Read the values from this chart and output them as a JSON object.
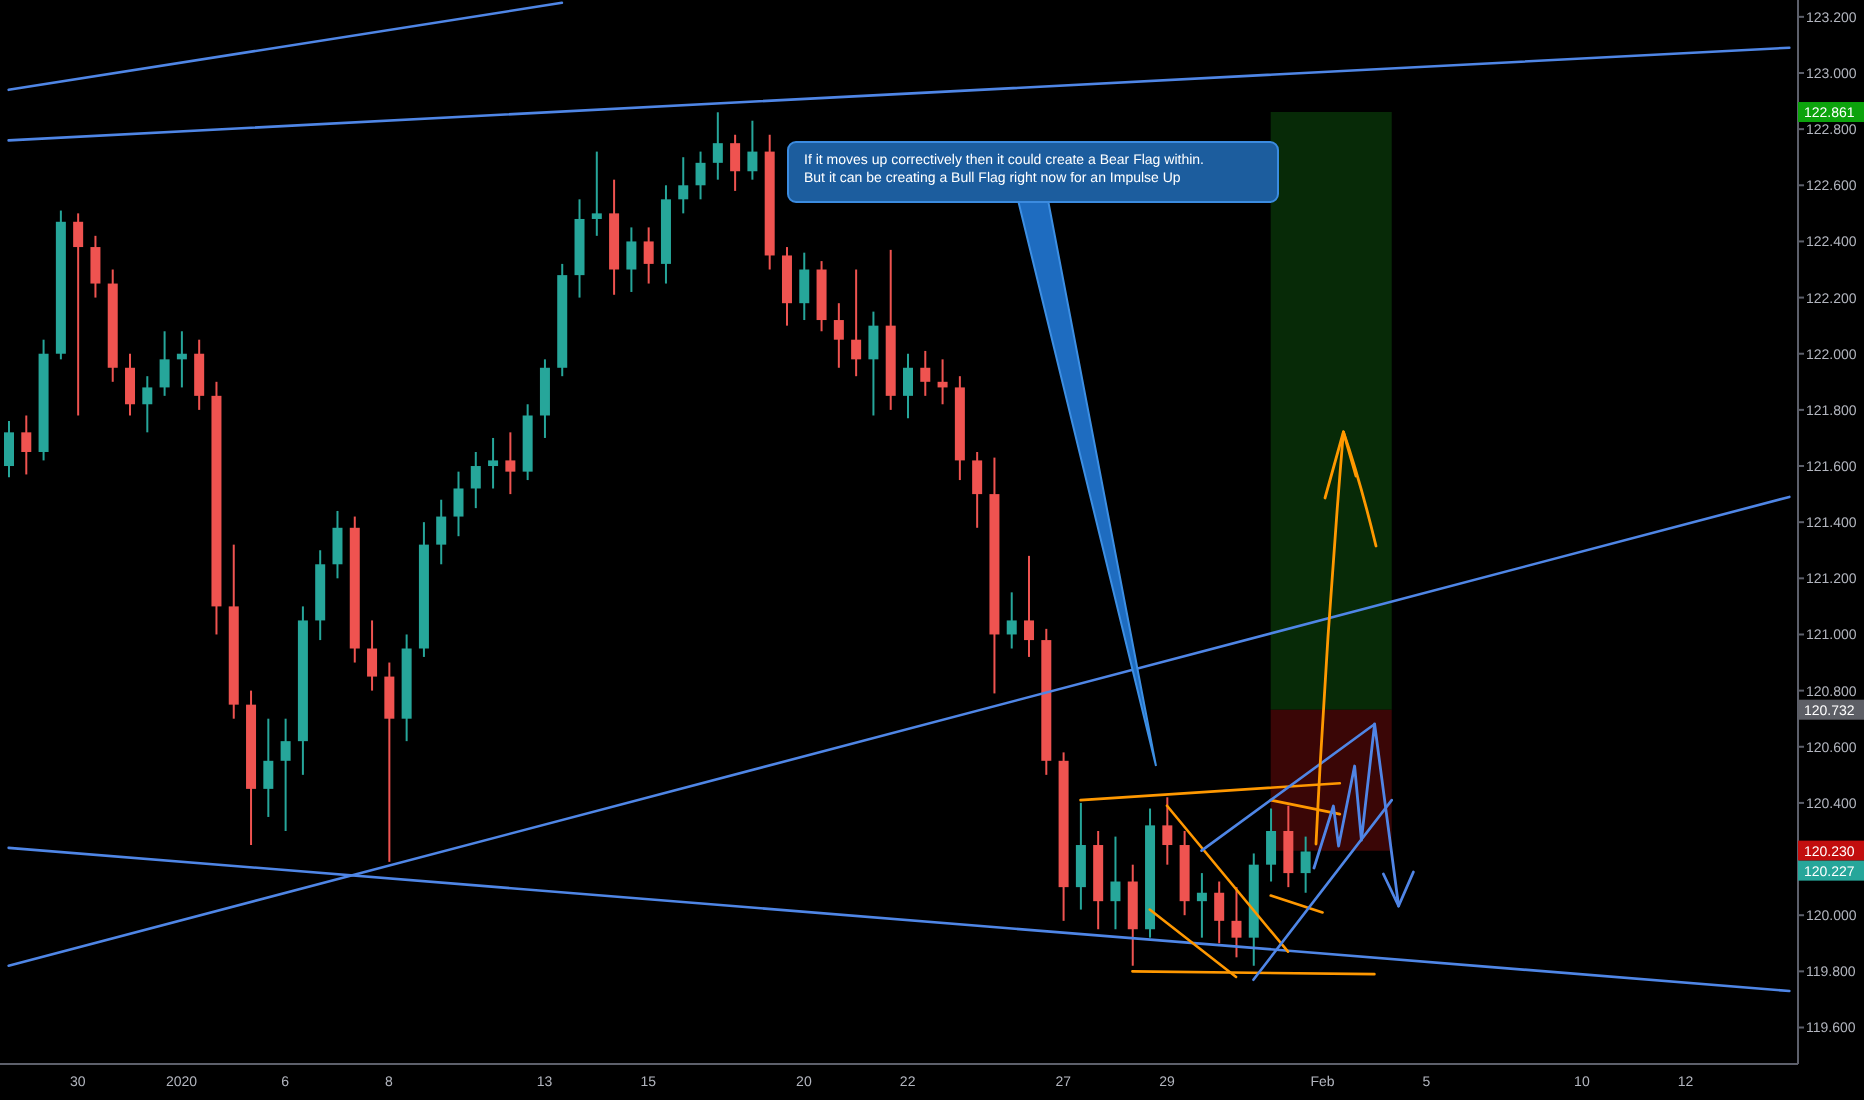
{
  "chart_data": {
    "type": "candlestick",
    "categories": [
      null,
      null,
      null,
      null,
      "30",
      null,
      null,
      null,
      null,
      null,
      "2020",
      null,
      null,
      null,
      null,
      null,
      "6",
      null,
      null,
      null,
      null,
      null,
      "8",
      null,
      null,
      null,
      null,
      null,
      null,
      null,
      null,
      "13",
      null,
      null,
      null,
      null,
      null,
      "15",
      null,
      null,
      null,
      null,
      null,
      null,
      null,
      null,
      "20",
      null,
      null,
      null,
      null,
      null,
      "22",
      null,
      null,
      null,
      null,
      null,
      null,
      null,
      null,
      "27",
      null,
      null,
      null,
      null,
      null,
      "29",
      null,
      null,
      null,
      null,
      null,
      null,
      null,
      null,
      "Feb",
      null,
      null,
      null,
      null,
      null,
      "5",
      null,
      null,
      null,
      null,
      null,
      null,
      null,
      null,
      "10",
      null,
      null,
      null,
      null,
      null,
      "12",
      null,
      null,
      null,
      null,
      null,
      null
    ],
    "ohlc": [
      [
        121.6,
        121.76,
        121.56,
        121.72
      ],
      [
        121.72,
        121.78,
        121.57,
        121.65
      ],
      [
        121.65,
        122.05,
        121.62,
        122.0
      ],
      [
        122.0,
        122.51,
        121.98,
        122.47
      ],
      [
        122.47,
        122.5,
        121.78,
        122.38
      ],
      [
        122.38,
        122.42,
        122.2,
        122.25
      ],
      [
        122.25,
        122.3,
        121.9,
        121.95
      ],
      [
        121.95,
        122.0,
        121.78,
        121.82
      ],
      [
        121.82,
        121.92,
        121.72,
        121.88
      ],
      [
        121.88,
        122.08,
        121.85,
        121.98
      ],
      [
        121.98,
        122.08,
        121.88,
        122.0
      ],
      [
        122.0,
        122.05,
        121.8,
        121.85
      ],
      [
        121.85,
        121.9,
        121.0,
        121.1
      ],
      [
        121.1,
        121.32,
        120.7,
        120.75
      ],
      [
        120.75,
        120.8,
        120.25,
        120.45
      ],
      [
        120.45,
        120.7,
        120.35,
        120.55
      ],
      [
        120.55,
        120.7,
        120.3,
        120.62
      ],
      [
        120.62,
        121.1,
        120.5,
        121.05
      ],
      [
        121.05,
        121.3,
        120.98,
        121.25
      ],
      [
        121.25,
        121.44,
        121.2,
        121.38
      ],
      [
        121.38,
        121.42,
        120.9,
        120.95
      ],
      [
        120.95,
        121.05,
        120.8,
        120.85
      ],
      [
        120.85,
        120.9,
        120.19,
        120.7
      ],
      [
        120.7,
        121.0,
        120.62,
        120.95
      ],
      [
        120.95,
        121.4,
        120.92,
        121.32
      ],
      [
        121.32,
        121.48,
        121.25,
        121.42
      ],
      [
        121.42,
        121.58,
        121.35,
        121.52
      ],
      [
        121.52,
        121.65,
        121.45,
        121.6
      ],
      [
        121.6,
        121.7,
        121.52,
        121.62
      ],
      [
        121.62,
        121.72,
        121.5,
        121.58
      ],
      [
        121.58,
        121.82,
        121.55,
        121.78
      ],
      [
        121.78,
        121.98,
        121.7,
        121.95
      ],
      [
        121.95,
        122.32,
        121.92,
        122.28
      ],
      [
        122.28,
        122.55,
        122.2,
        122.48
      ],
      [
        122.48,
        122.72,
        122.42,
        122.5
      ],
      [
        122.5,
        122.62,
        122.21,
        122.3
      ],
      [
        122.3,
        122.45,
        122.22,
        122.4
      ],
      [
        122.4,
        122.45,
        122.25,
        122.32
      ],
      [
        122.32,
        122.6,
        122.25,
        122.55
      ],
      [
        122.55,
        122.7,
        122.5,
        122.6
      ],
      [
        122.6,
        122.72,
        122.55,
        122.68
      ],
      [
        122.68,
        122.86,
        122.62,
        122.75
      ],
      [
        122.75,
        122.78,
        122.58,
        122.65
      ],
      [
        122.65,
        122.83,
        122.62,
        122.72
      ],
      [
        122.72,
        122.78,
        122.3,
        122.35
      ],
      [
        122.35,
        122.38,
        122.1,
        122.18
      ],
      [
        122.18,
        122.36,
        122.12,
        122.3
      ],
      [
        122.3,
        122.33,
        122.08,
        122.12
      ],
      [
        122.12,
        122.18,
        121.95,
        122.05
      ],
      [
        122.05,
        122.3,
        121.92,
        121.98
      ],
      [
        121.98,
        122.15,
        121.78,
        122.1
      ],
      [
        122.1,
        122.37,
        121.8,
        121.85
      ],
      [
        121.85,
        122.0,
        121.77,
        121.95
      ],
      [
        121.95,
        122.01,
        121.85,
        121.9
      ],
      [
        121.9,
        121.98,
        121.82,
        121.88
      ],
      [
        121.88,
        121.92,
        121.55,
        121.62
      ],
      [
        121.62,
        121.65,
        121.38,
        121.5
      ],
      [
        121.5,
        121.63,
        120.79,
        121.0
      ],
      [
        121.0,
        121.15,
        120.95,
        121.05
      ],
      [
        121.05,
        121.28,
        120.92,
        120.98
      ],
      [
        120.98,
        121.02,
        120.5,
        120.55
      ],
      [
        120.55,
        120.58,
        119.98,
        120.1
      ],
      [
        120.1,
        120.4,
        120.02,
        120.25
      ],
      [
        120.25,
        120.3,
        119.95,
        120.05
      ],
      [
        120.05,
        120.28,
        119.95,
        120.12
      ],
      [
        120.12,
        120.18,
        119.82,
        119.95
      ],
      [
        119.95,
        120.38,
        119.92,
        120.32
      ],
      [
        120.32,
        120.42,
        120.18,
        120.25
      ],
      [
        120.25,
        120.3,
        120.0,
        120.05
      ],
      [
        120.05,
        120.15,
        119.92,
        120.08
      ],
      [
        120.08,
        120.12,
        119.9,
        119.98
      ],
      [
        119.98,
        120.1,
        119.85,
        119.92
      ],
      [
        119.92,
        120.22,
        119.82,
        120.18
      ],
      [
        120.18,
        120.38,
        120.12,
        120.3
      ],
      [
        120.3,
        120.39,
        120.1,
        120.15
      ],
      [
        120.15,
        120.28,
        120.08,
        120.227
      ],
      null,
      null,
      null,
      null,
      null,
      null,
      null,
      null,
      null,
      null,
      null,
      null,
      null,
      null,
      null,
      null,
      null,
      null,
      null,
      null,
      null,
      null,
      null,
      null,
      null,
      null,
      null,
      null
    ],
    "colors": [
      "#26a69a",
      "#ef5350",
      "#26a69a",
      "#26a69a",
      "#ef5350",
      "#ef5350",
      "#ef5350",
      "#ef5350",
      "#26a69a",
      "#26a69a",
      "#26a69a",
      "#ef5350",
      "#ef5350",
      "#ef5350",
      "#ef5350",
      "#26a69a",
      "#26a69a",
      "#26a69a",
      "#26a69a",
      "#26a69a",
      "#ef5350",
      "#ef5350",
      "#ef5350",
      "#26a69a",
      "#26a69a",
      "#26a69a",
      "#26a69a",
      "#26a69a",
      "#26a69a",
      "#ef5350",
      "#26a69a",
      "#26a69a",
      "#26a69a",
      "#26a69a",
      "#26a69a",
      "#ef5350",
      "#26a69a",
      "#ef5350",
      "#26a69a",
      "#26a69a",
      "#26a69a",
      "#26a69a",
      "#ef5350",
      "#26a69a",
      "#ef5350",
      "#ef5350",
      "#26a69a",
      "#ef5350",
      "#ef5350",
      "#ef5350",
      "#26a69a",
      "#ef5350",
      "#26a69a",
      "#ef5350",
      "#ef5350",
      "#ef5350",
      "#ef5350",
      "#ef5350",
      "#26a69a",
      "#ef5350",
      "#ef5350",
      "#ef5350",
      "#26a69a",
      "#ef5350",
      "#26a69a",
      "#ef5350",
      "#26a69a",
      "#ef5350",
      "#ef5350",
      "#26a69a",
      "#ef5350",
      "#ef5350",
      "#26a69a",
      "#26a69a",
      "#ef5350",
      "#26a69a",
      null,
      null,
      null,
      null,
      null,
      null,
      null,
      null,
      null,
      null,
      null,
      null,
      null,
      null,
      null,
      null,
      null,
      null,
      null,
      null,
      null,
      null,
      null,
      null,
      null,
      null,
      null,
      null
    ],
    "series": [
      {
        "type": "line",
        "color": "#4f86e6",
        "values": [
          122.94,
          null,
          null,
          null,
          null,
          null,
          null,
          null,
          null,
          null,
          null,
          null,
          null,
          null,
          null,
          null,
          null,
          null,
          null,
          null,
          null,
          null,
          null,
          null,
          null,
          null,
          null,
          null,
          null,
          null,
          null,
          null,
          123.25,
          null,
          null,
          null,
          null,
          null,
          null,
          null,
          null,
          null,
          null,
          null,
          null,
          null,
          null,
          null,
          null,
          null,
          null,
          null,
          null,
          null,
          null,
          null,
          null,
          null,
          null,
          null,
          null,
          null,
          null,
          null,
          null,
          null,
          null,
          null,
          null,
          null,
          null,
          null,
          null,
          null,
          null,
          null,
          null,
          null,
          null,
          null,
          null,
          null,
          null,
          null,
          null,
          null,
          null,
          null,
          null,
          null,
          null,
          null,
          null,
          null,
          null,
          null,
          null,
          null,
          null,
          null,
          null,
          null,
          null,
          null
        ]
      },
      {
        "type": "line",
        "color": "#4f86e6",
        "values": [
          122.76,
          null,
          null,
          null,
          null,
          null,
          null,
          null,
          null,
          null,
          null,
          null,
          null,
          null,
          null,
          null,
          null,
          null,
          null,
          null,
          null,
          null,
          null,
          null,
          null,
          null,
          null,
          null,
          null,
          null,
          null,
          null,
          null,
          null,
          null,
          null,
          null,
          null,
          null,
          null,
          null,
          null,
          null,
          null,
          null,
          null,
          null,
          null,
          null,
          null,
          null,
          null,
          null,
          null,
          null,
          null,
          null,
          null,
          null,
          null,
          null,
          null,
          null,
          null,
          null,
          null,
          null,
          null,
          null,
          null,
          null,
          null,
          null,
          null,
          null,
          null,
          null,
          null,
          null,
          null,
          null,
          null,
          null,
          null,
          null,
          null,
          null,
          null,
          null,
          null,
          null,
          null,
          null,
          null,
          null,
          null,
          null,
          null,
          null,
          null,
          null,
          null,
          null,
          123.09
        ]
      },
      {
        "type": "line",
        "color": "#4f86e6",
        "values": [
          119.82,
          null,
          null,
          null,
          null,
          null,
          null,
          null,
          null,
          null,
          null,
          null,
          null,
          null,
          null,
          null,
          null,
          null,
          null,
          null,
          null,
          null,
          null,
          null,
          null,
          null,
          null,
          null,
          null,
          null,
          null,
          null,
          null,
          null,
          null,
          null,
          null,
          null,
          null,
          null,
          null,
          null,
          null,
          null,
          null,
          null,
          null,
          null,
          null,
          null,
          null,
          null,
          null,
          null,
          null,
          null,
          null,
          null,
          null,
          null,
          null,
          null,
          null,
          null,
          null,
          null,
          null,
          null,
          null,
          null,
          null,
          null,
          null,
          null,
          null,
          null,
          null,
          null,
          null,
          null,
          null,
          null,
          null,
          null,
          null,
          null,
          null,
          null,
          null,
          null,
          null,
          null,
          null,
          null,
          null,
          null,
          null,
          null,
          null,
          null,
          null,
          null,
          null,
          121.49
        ]
      },
      {
        "type": "line",
        "color": "#4f86e6",
        "values": [
          120.24,
          null,
          null,
          null,
          null,
          null,
          null,
          null,
          null,
          null,
          null,
          null,
          null,
          null,
          null,
          null,
          null,
          null,
          null,
          null,
          null,
          null,
          null,
          null,
          null,
          null,
          null,
          null,
          null,
          null,
          null,
          null,
          null,
          null,
          null,
          null,
          null,
          null,
          null,
          null,
          null,
          null,
          null,
          null,
          null,
          null,
          null,
          null,
          null,
          null,
          null,
          null,
          null,
          null,
          null,
          null,
          null,
          null,
          null,
          null,
          null,
          null,
          null,
          null,
          null,
          null,
          null,
          null,
          null,
          null,
          null,
          null,
          null,
          null,
          null,
          null,
          null,
          null,
          null,
          null,
          null,
          null,
          null,
          null,
          null,
          null,
          null,
          null,
          null,
          null,
          null,
          null,
          null,
          null,
          null,
          null,
          null,
          null,
          null,
          null,
          null,
          null,
          null,
          119.73
        ]
      },
      {
        "type": "line",
        "color": "#ff9800",
        "values": [
          null,
          null,
          null,
          null,
          null,
          null,
          null,
          null,
          null,
          null,
          null,
          null,
          null,
          null,
          null,
          null,
          null,
          null,
          null,
          null,
          null,
          null,
          null,
          null,
          null,
          null,
          null,
          null,
          null,
          null,
          null,
          null,
          null,
          null,
          null,
          null,
          null,
          null,
          null,
          null,
          null,
          null,
          null,
          null,
          null,
          null,
          null,
          null,
          null,
          null,
          null,
          null,
          null,
          null,
          null,
          null,
          null,
          null,
          null,
          null,
          null,
          null,
          120.41,
          null,
          null,
          null,
          null,
          null,
          null,
          null,
          null,
          null,
          null,
          null,
          null,
          null,
          null,
          120.47,
          null,
          null,
          null,
          null,
          null,
          null,
          null,
          null,
          null,
          null,
          null,
          null,
          null,
          null,
          null,
          null,
          null,
          null,
          null,
          null,
          null,
          null,
          null,
          null,
          null,
          null
        ]
      },
      {
        "type": "line",
        "color": "#ff9800",
        "values": [
          null,
          null,
          null,
          null,
          null,
          null,
          null,
          null,
          null,
          null,
          null,
          null,
          null,
          null,
          null,
          null,
          null,
          null,
          null,
          null,
          null,
          null,
          null,
          null,
          null,
          null,
          null,
          null,
          null,
          null,
          null,
          null,
          null,
          null,
          null,
          null,
          null,
          null,
          null,
          null,
          null,
          null,
          null,
          null,
          null,
          null,
          null,
          null,
          null,
          null,
          null,
          null,
          null,
          null,
          null,
          null,
          null,
          null,
          null,
          null,
          null,
          null,
          null,
          null,
          null,
          null,
          null,
          120.39,
          null,
          null,
          null,
          null,
          null,
          null,
          119.87,
          null,
          null,
          null,
          null,
          null,
          null,
          null,
          null,
          null,
          null,
          null,
          null,
          null,
          null,
          null,
          null,
          null,
          null,
          null,
          null,
          null,
          null,
          null,
          null,
          null,
          null,
          null,
          null,
          null
        ]
      },
      {
        "type": "line",
        "color": "#ff9800",
        "values": [
          null,
          null,
          null,
          null,
          null,
          null,
          null,
          null,
          null,
          null,
          null,
          null,
          null,
          null,
          null,
          null,
          null,
          null,
          null,
          null,
          null,
          null,
          null,
          null,
          null,
          null,
          null,
          null,
          null,
          null,
          null,
          null,
          null,
          null,
          null,
          null,
          null,
          null,
          null,
          null,
          null,
          null,
          null,
          null,
          null,
          null,
          null,
          null,
          null,
          null,
          null,
          null,
          null,
          null,
          null,
          null,
          null,
          null,
          null,
          null,
          null,
          null,
          null,
          null,
          null,
          null,
          120.02,
          null,
          null,
          null,
          null,
          119.78,
          null,
          null,
          null,
          null,
          null,
          null,
          null,
          null,
          null,
          null,
          null,
          null,
          null,
          null,
          null,
          null,
          null,
          null,
          null,
          null,
          null,
          null,
          null,
          null,
          null,
          null,
          null,
          null,
          null,
          null,
          null,
          null
        ]
      },
      {
        "type": "line",
        "color": "#ff9800",
        "values": [
          null,
          null,
          null,
          null,
          null,
          null,
          null,
          null,
          null,
          null,
          null,
          null,
          null,
          null,
          null,
          null,
          null,
          null,
          null,
          null,
          null,
          null,
          null,
          null,
          null,
          null,
          null,
          null,
          null,
          null,
          null,
          null,
          null,
          null,
          null,
          null,
          null,
          null,
          null,
          null,
          null,
          null,
          null,
          null,
          null,
          null,
          null,
          null,
          null,
          null,
          null,
          null,
          null,
          null,
          null,
          null,
          null,
          null,
          null,
          null,
          null,
          null,
          null,
          null,
          null,
          119.8,
          null,
          null,
          null,
          null,
          null,
          null,
          null,
          null,
          null,
          null,
          null,
          null,
          null,
          119.79,
          null,
          null,
          null,
          null,
          null,
          null,
          null,
          null,
          null,
          null,
          null,
          null,
          null,
          null,
          null,
          null,
          null,
          null,
          null,
          null,
          null,
          null,
          null,
          null
        ]
      },
      {
        "type": "line",
        "color": "#ff9800",
        "values": [
          null,
          null,
          null,
          null,
          null,
          null,
          null,
          null,
          null,
          null,
          null,
          null,
          null,
          null,
          null,
          null,
          null,
          null,
          null,
          null,
          null,
          null,
          null,
          null,
          null,
          null,
          null,
          null,
          null,
          null,
          null,
          null,
          null,
          null,
          null,
          null,
          null,
          null,
          null,
          null,
          null,
          null,
          null,
          null,
          null,
          null,
          null,
          null,
          null,
          null,
          null,
          null,
          null,
          null,
          null,
          null,
          null,
          null,
          null,
          null,
          null,
          null,
          null,
          null,
          null,
          null,
          null,
          null,
          null,
          null,
          null,
          null,
          null,
          120.41,
          null,
          null,
          null,
          120.36,
          null,
          null,
          null,
          null,
          null,
          null,
          null,
          null,
          null,
          null,
          null,
          null,
          null,
          null,
          null,
          null,
          null,
          null,
          null,
          null,
          null,
          null,
          null,
          null,
          null,
          null
        ]
      },
      {
        "type": "line",
        "color": "#ff9800",
        "values": [
          null,
          null,
          null,
          null,
          null,
          null,
          null,
          null,
          null,
          null,
          null,
          null,
          null,
          null,
          null,
          null,
          null,
          null,
          null,
          null,
          null,
          null,
          null,
          null,
          null,
          null,
          null,
          null,
          null,
          null,
          null,
          null,
          null,
          null,
          null,
          null,
          null,
          null,
          null,
          null,
          null,
          null,
          null,
          null,
          null,
          null,
          null,
          null,
          null,
          null,
          null,
          null,
          null,
          null,
          null,
          null,
          null,
          null,
          null,
          null,
          null,
          null,
          null,
          null,
          null,
          null,
          null,
          null,
          null,
          null,
          null,
          null,
          null,
          120.07,
          null,
          null,
          120.01,
          null,
          null,
          null,
          null,
          null,
          null,
          null,
          null,
          null,
          null,
          null,
          null,
          null,
          null,
          null,
          null,
          null,
          null,
          null,
          null,
          null,
          null,
          null,
          null,
          null,
          null,
          null
        ]
      },
      {
        "type": "line",
        "color": "#4f86e6",
        "values": [
          null,
          null,
          null,
          null,
          null,
          null,
          null,
          null,
          null,
          null,
          null,
          null,
          null,
          null,
          null,
          null,
          null,
          null,
          null,
          null,
          null,
          null,
          null,
          null,
          null,
          null,
          null,
          null,
          null,
          null,
          null,
          null,
          null,
          null,
          null,
          null,
          null,
          null,
          null,
          null,
          null,
          null,
          null,
          null,
          null,
          null,
          null,
          null,
          null,
          null,
          null,
          null,
          null,
          null,
          null,
          null,
          null,
          null,
          null,
          null,
          null,
          null,
          null,
          null,
          null,
          null,
          null,
          null,
          null,
          120.23,
          null,
          null,
          null,
          null,
          null,
          null,
          null,
          null,
          null,
          120.68,
          null,
          null,
          null,
          null,
          null,
          null,
          null,
          null,
          null,
          null,
          null,
          null,
          null,
          null,
          null,
          null,
          null,
          null,
          null,
          null,
          null,
          null,
          null,
          null
        ]
      },
      {
        "type": "line",
        "color": "#4f86e6",
        "values": [
          null,
          null,
          null,
          null,
          null,
          null,
          null,
          null,
          null,
          null,
          null,
          null,
          null,
          null,
          null,
          null,
          null,
          null,
          null,
          null,
          null,
          null,
          null,
          null,
          null,
          null,
          null,
          null,
          null,
          null,
          null,
          null,
          null,
          null,
          null,
          null,
          null,
          null,
          null,
          null,
          null,
          null,
          null,
          null,
          null,
          null,
          null,
          null,
          null,
          null,
          null,
          null,
          null,
          null,
          null,
          null,
          null,
          null,
          null,
          null,
          null,
          null,
          null,
          null,
          null,
          null,
          null,
          null,
          null,
          null,
          null,
          null,
          119.77,
          null,
          null,
          null,
          null,
          null,
          null,
          null,
          120.41,
          null,
          null,
          null,
          null,
          null,
          null,
          null,
          null,
          null,
          null,
          null,
          null,
          null,
          null,
          null,
          null,
          null,
          null,
          null,
          null,
          null,
          null,
          null
        ]
      }
    ],
    "ylim": [
      119.47,
      123.26
    ],
    "yticks": [
      {
        "value": 119.6,
        "label": "119.600"
      },
      {
        "value": 119.8,
        "label": "119.800"
      },
      {
        "value": 120,
        "label": "120.000"
      },
      {
        "value": 120.4,
        "label": "120.400"
      },
      {
        "value": 120.6,
        "label": "120.600"
      },
      {
        "value": 120.8,
        "label": "120.800"
      },
      {
        "value": 121,
        "label": "121.000"
      },
      {
        "value": 121.2,
        "label": "121.200"
      },
      {
        "value": 121.4,
        "label": "121.400"
      },
      {
        "value": 121.6,
        "label": "121.600"
      },
      {
        "value": 121.8,
        "label": "121.800"
      },
      {
        "value": 122,
        "label": "122.000"
      },
      {
        "value": 122.2,
        "label": "122.200"
      },
      {
        "value": 122.4,
        "label": "122.400"
      },
      {
        "value": 122.6,
        "label": "122.600"
      },
      {
        "value": 122.8,
        "label": "122.800"
      },
      {
        "value": 123,
        "label": "123.000"
      },
      {
        "value": 123.2,
        "label": "123.200"
      }
    ],
    "bands": [
      {
        "axis": "y",
        "from": 120.732,
        "to": 122.861,
        "color": "#072a07"
      },
      {
        "axis": "y",
        "from": 120.23,
        "to": 120.732,
        "color": "#3a0606"
      }
    ],
    "annotations": [
      "If it moves up correctively then it could create a Bear Flag within.\nBut it can be creating a Bull Flag right now for an Impulse Up",
      {
        "text": "122.861",
        "y": 122.861
      },
      {
        "text": "120.732",
        "y": 120.732
      },
      {
        "text": "120.230",
        "y": 120.23
      },
      "120.227"
    ]
  }
}
